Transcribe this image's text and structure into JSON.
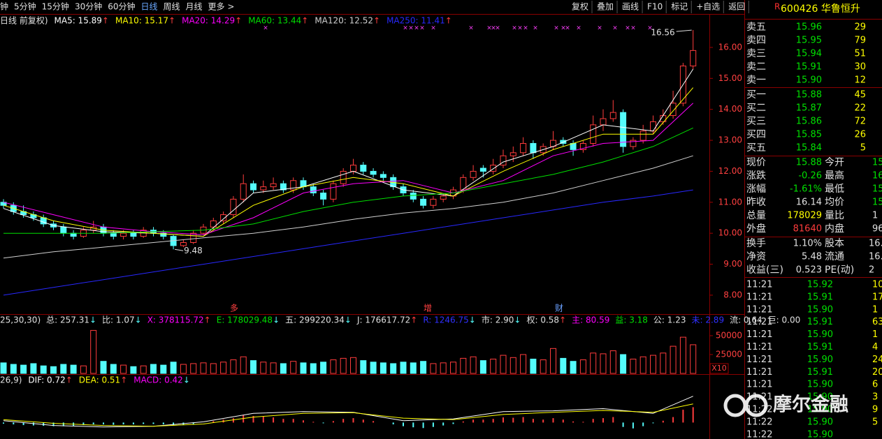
{
  "toolbar": {
    "periods": [
      "分钟",
      "5分钟",
      "15分钟",
      "30分钟",
      "60分钟",
      "日线",
      "周线",
      "月线",
      "更多 >"
    ],
    "active": 5,
    "buttons": [
      "复权",
      "叠加",
      "画线",
      "F10",
      "标记",
      "+自选",
      "返回"
    ]
  },
  "stock": {
    "flag": "R",
    "code_name": "600426 华鲁恒升"
  },
  "chart": {
    "type": "candlestick",
    "ma_header": [
      {
        "text": "日线 前复权)",
        "color": "#e0e0e0"
      },
      {
        "text": "MA5: 15.89",
        "color": "#ffffff",
        "arrow": "↑"
      },
      {
        "text": "MA10: 15.17",
        "color": "#ffff00",
        "arrow": "↑"
      },
      {
        "text": "MA20: 14.29",
        "color": "#ff00ff",
        "arrow": "↑"
      },
      {
        "text": "MA60: 13.44",
        "color": "#00e000",
        "arrow": "↑"
      },
      {
        "text": "MA120: 12.52",
        "color": "#d0d0d0",
        "arrow": "↑"
      },
      {
        "text": "MA250: 11.41",
        "color": "#2828ff",
        "arrow": "↑"
      }
    ],
    "ylim": [
      7.39,
      17.08
    ],
    "yticks": [
      {
        "value": 8,
        "label": "8.00"
      },
      {
        "value": 9,
        "label": "9.00"
      },
      {
        "value": 10,
        "label": "10.00"
      },
      {
        "value": 11,
        "label": "11.00"
      },
      {
        "value": 12,
        "label": "12.00"
      },
      {
        "value": 13,
        "label": "13.00"
      },
      {
        "value": 14,
        "label": "14.00"
      },
      {
        "value": 15,
        "label": "15.00"
      },
      {
        "value": 16,
        "label": "16.00"
      }
    ],
    "up_color": "#ff3c3c",
    "down_color": "#54fcfc",
    "candles": [
      [
        11.0,
        11.1,
        10.8,
        10.9
      ],
      [
        10.9,
        11.0,
        10.6,
        10.7
      ],
      [
        10.7,
        10.9,
        10.5,
        10.6
      ],
      [
        10.6,
        10.7,
        10.4,
        10.5
      ],
      [
        10.5,
        10.6,
        10.2,
        10.3
      ],
      [
        10.3,
        10.4,
        10.1,
        10.2
      ],
      [
        10.2,
        10.3,
        9.9,
        10.0
      ],
      [
        10.0,
        10.1,
        9.8,
        9.9
      ],
      [
        9.9,
        10.2,
        9.85,
        10.1
      ],
      [
        10.1,
        10.4,
        10.0,
        10.2
      ],
      [
        10.2,
        10.3,
        9.9,
        10.0
      ],
      [
        10.0,
        10.1,
        9.8,
        9.9
      ],
      [
        9.9,
        10.1,
        9.8,
        10.0
      ],
      [
        10.0,
        10.1,
        9.8,
        9.9
      ],
      [
        9.9,
        10.2,
        9.85,
        10.1
      ],
      [
        10.1,
        10.2,
        9.9,
        10.0
      ],
      [
        10.0,
        10.1,
        9.8,
        9.9
      ],
      [
        9.9,
        9.95,
        9.48,
        9.6
      ],
      [
        9.6,
        9.8,
        9.55,
        9.7
      ],
      [
        9.7,
        10.1,
        9.65,
        10.0
      ],
      [
        10.0,
        10.3,
        9.95,
        10.2
      ],
      [
        10.2,
        10.5,
        10.1,
        10.4
      ],
      [
        10.4,
        10.7,
        10.3,
        10.6
      ],
      [
        10.6,
        11.2,
        10.5,
        11.1
      ],
      [
        11.1,
        11.9,
        11.0,
        11.6
      ],
      [
        11.6,
        11.7,
        11.3,
        11.4
      ],
      [
        11.4,
        11.7,
        11.3,
        11.5
      ],
      [
        11.5,
        11.8,
        11.4,
        11.6
      ],
      [
        11.6,
        11.7,
        11.3,
        11.4
      ],
      [
        11.4,
        11.8,
        11.3,
        11.7
      ],
      [
        11.7,
        11.8,
        11.4,
        11.5
      ],
      [
        11.5,
        11.6,
        11.2,
        11.3
      ],
      [
        11.3,
        11.4,
        10.9,
        11.1
      ],
      [
        11.1,
        11.7,
        11.0,
        11.6
      ],
      [
        11.6,
        12.1,
        11.5,
        12.0
      ],
      [
        12.0,
        12.4,
        11.9,
        12.2
      ],
      [
        12.2,
        12.3,
        11.9,
        12.0
      ],
      [
        12.0,
        12.1,
        11.8,
        11.9
      ],
      [
        11.9,
        12.0,
        11.7,
        11.8
      ],
      [
        11.8,
        11.9,
        11.4,
        11.5
      ],
      [
        11.5,
        11.6,
        11.2,
        11.3
      ],
      [
        11.3,
        11.4,
        11.0,
        11.1
      ],
      [
        11.1,
        11.2,
        10.8,
        10.9
      ],
      [
        10.9,
        11.2,
        10.8,
        11.1
      ],
      [
        11.1,
        11.3,
        11.0,
        11.2
      ],
      [
        11.2,
        11.5,
        11.1,
        11.4
      ],
      [
        11.4,
        11.9,
        11.3,
        11.8
      ],
      [
        11.8,
        12.2,
        11.7,
        12.0
      ],
      [
        12.1,
        12.2,
        11.8,
        12.0
      ],
      [
        12.0,
        12.4,
        11.9,
        12.2
      ],
      [
        12.2,
        12.7,
        12.1,
        12.5
      ],
      [
        12.5,
        12.8,
        12.3,
        12.6
      ],
      [
        12.6,
        13.1,
        12.5,
        12.9
      ],
      [
        12.9,
        13.0,
        12.4,
        12.6
      ],
      [
        12.6,
        12.9,
        12.5,
        12.8
      ],
      [
        12.8,
        13.3,
        12.7,
        13.0
      ],
      [
        13.0,
        13.1,
        12.8,
        12.9
      ],
      [
        12.9,
        13.0,
        12.5,
        12.7
      ],
      [
        12.7,
        13.0,
        12.6,
        12.9
      ],
      [
        12.9,
        13.8,
        12.8,
        13.5
      ],
      [
        13.5,
        14.0,
        13.3,
        13.7
      ],
      [
        13.7,
        14.3,
        13.6,
        13.9
      ],
      [
        13.9,
        14.0,
        12.6,
        12.8
      ],
      [
        12.8,
        13.1,
        12.7,
        13.0
      ],
      [
        13.0,
        13.5,
        12.9,
        13.3
      ],
      [
        13.3,
        13.8,
        13.2,
        13.6
      ],
      [
        13.6,
        14.0,
        13.5,
        13.8
      ],
      [
        13.8,
        14.6,
        13.7,
        14.2
      ],
      [
        14.2,
        15.5,
        14.1,
        15.4
      ],
      [
        15.4,
        16.56,
        15.3,
        15.9
      ]
    ],
    "ma_index": [
      0,
      5,
      10,
      15,
      20,
      25,
      30,
      35,
      40,
      45,
      50,
      55,
      60,
      65,
      69
    ],
    "ma_lines": [
      {
        "color": "#ffffff",
        "values": [
          10.8,
          10.25,
          10.05,
          10.0,
          9.9,
          11.3,
          11.5,
          12.0,
          11.4,
          11.2,
          12.3,
          12.8,
          13.5,
          13.3,
          15.3
        ]
      },
      {
        "color": "#ffff00",
        "values": [
          10.9,
          10.4,
          10.1,
          10.0,
          9.9,
          10.9,
          11.5,
          11.8,
          11.6,
          11.2,
          12.0,
          12.7,
          13.2,
          13.2,
          14.7
        ]
      },
      {
        "color": "#ff00ff",
        "values": [
          11.0,
          10.6,
          10.2,
          10.05,
          9.95,
          10.5,
          11.3,
          11.6,
          11.7,
          11.3,
          11.7,
          12.5,
          12.9,
          13.0,
          14.2
        ]
      },
      {
        "color": "#00e000",
        "values": [
          10.0,
          10.0,
          10.0,
          10.05,
          10.1,
          10.3,
          10.7,
          11.0,
          11.2,
          11.3,
          11.6,
          11.9,
          12.3,
          12.8,
          13.4
        ]
      },
      {
        "color": "#d0d0d0",
        "values": [
          9.2,
          9.4,
          9.55,
          9.7,
          9.85,
          10.0,
          10.2,
          10.45,
          10.65,
          10.8,
          11.0,
          11.3,
          11.7,
          12.1,
          12.5
        ]
      },
      {
        "color": "#2828ff",
        "values": [
          8.0,
          8.25,
          8.5,
          8.75,
          9.0,
          9.25,
          9.5,
          9.75,
          10.0,
          10.25,
          10.5,
          10.75,
          11.0,
          11.2,
          11.4
        ]
      }
    ],
    "high": 16.56,
    "low": 9.48,
    "events": [
      "多",
      "增",
      "财"
    ],
    "volume": {
      "header": [
        {
          "text": "25,30,30)",
          "color": "#e0e0e0"
        },
        {
          "text": "总: 257.31",
          "color": "#e0e0e0",
          "arrow": "↓"
        },
        {
          "text": "比: 1.07",
          "color": "#e0e0e0",
          "arrow": "↓"
        },
        {
          "text": "X: 378115.72",
          "color": "#ff00ff",
          "arrow": "↑"
        },
        {
          "text": "E: 178029.48",
          "color": "#00e000",
          "arrow": "↓"
        },
        {
          "text": "五: 299220.34",
          "color": "#e0e0e0",
          "arrow": "↓"
        },
        {
          "text": "J: 176617.72",
          "color": "#e0e0e0",
          "arrow": "↑"
        },
        {
          "text": "R: 1246.75",
          "color": "#3030ff",
          "arrow": "↓"
        },
        {
          "text": "市: 2.90",
          "color": "#e0e0e0",
          "arrow": "↓"
        },
        {
          "text": "权: 0.58",
          "color": "#e0e0e0",
          "arrow": "↑"
        },
        {
          "text": "主: 80.59",
          "color": "#ff00ff"
        },
        {
          "text": "益: 3.18",
          "color": "#00e000"
        },
        {
          "text": "公: 1.23",
          "color": "#e0e0e0"
        },
        {
          "text": "未: 2.89",
          "color": "#3030ff"
        },
        {
          "text": "流: 0.64",
          "color": "#e0e0e0"
        },
        {
          "text": "巨: 0.00",
          "color": "#e0e0e0"
        }
      ],
      "ylim": [
        0,
        62000
      ],
      "yticks": [
        25000,
        50000
      ],
      "unit": "X10",
      "values": [
        14000,
        12000,
        11000,
        13000,
        10000,
        9000,
        12000,
        11000,
        10000,
        57000,
        16000,
        12000,
        11000,
        9000,
        10000,
        12000,
        11000,
        15000,
        12000,
        13000,
        14000,
        13000,
        15000,
        18000,
        22000,
        17000,
        15000,
        14000,
        13000,
        16000,
        14000,
        13000,
        15000,
        18000,
        20000,
        21000,
        17000,
        15000,
        14000,
        13000,
        15000,
        14000,
        16000,
        13000,
        14000,
        15000,
        20000,
        22000,
        17000,
        19000,
        24000,
        21000,
        25000,
        19000,
        18000,
        33000,
        20000,
        16000,
        18000,
        27000,
        26000,
        30000,
        25000,
        19000,
        22000,
        24000,
        27000,
        36000,
        48000,
        38000
      ]
    },
    "macd": {
      "header": [
        {
          "text": "26,9)",
          "color": "#e0e0e0"
        },
        {
          "text": "DIF: 0.72",
          "color": "#ffffff",
          "arrow": "↑"
        },
        {
          "text": "DEA: 0.51",
          "color": "#ffff00",
          "arrow": "↑"
        },
        {
          "text": "MACD: 0.42",
          "color": "#ff00ff",
          "arrow": "↓"
        }
      ],
      "ylim": [
        -0.45,
        1.0
      ],
      "dif_color": "#ffffff",
      "dea_color": "#ffff00",
      "dif": [
        0.05,
        -0.08,
        -0.12,
        -0.1,
        0.02,
        0.25,
        0.3,
        0.28,
        0.05,
        0.1,
        0.3,
        0.32,
        0.38,
        0.25,
        0.72
      ],
      "dea": [
        0.08,
        -0.02,
        -0.08,
        -0.1,
        -0.04,
        0.15,
        0.25,
        0.27,
        0.12,
        0.08,
        0.22,
        0.28,
        0.33,
        0.28,
        0.51
      ],
      "values": [
        -0.03,
        -0.05,
        -0.07,
        -0.08,
        -0.09,
        -0.1,
        -0.1,
        -0.09,
        -0.07,
        -0.05,
        -0.05,
        -0.06,
        -0.05,
        -0.05,
        -0.04,
        -0.04,
        -0.05,
        -0.08,
        -0.07,
        -0.04,
        0.0,
        0.04,
        0.08,
        0.12,
        0.2,
        0.18,
        0.16,
        0.14,
        0.1,
        0.1,
        0.06,
        0.02,
        -0.02,
        0.04,
        0.1,
        0.12,
        0.08,
        0.04,
        0.0,
        -0.05,
        -0.1,
        -0.13,
        -0.15,
        -0.12,
        -0.08,
        -0.04,
        0.03,
        0.08,
        0.08,
        0.1,
        0.14,
        0.13,
        0.15,
        0.1,
        0.08,
        0.12,
        0.08,
        0.03,
        0.02,
        0.1,
        0.12,
        0.15,
        -0.12,
        -0.16,
        -0.1,
        -0.02,
        0.05,
        0.15,
        0.35,
        0.42
      ]
    }
  },
  "order_book": {
    "asks": [
      [
        "卖五",
        "15.96",
        "29"
      ],
      [
        "卖四",
        "15.95",
        "79"
      ],
      [
        "卖三",
        "15.94",
        "51"
      ],
      [
        "卖二",
        "15.91",
        "30"
      ],
      [
        "卖一",
        "15.90",
        "12"
      ]
    ],
    "bids": [
      [
        "买一",
        "15.88",
        "45"
      ],
      [
        "买二",
        "15.87",
        "22"
      ],
      [
        "买三",
        "15.86",
        "72"
      ],
      [
        "买四",
        "15.85",
        "26"
      ],
      [
        "买五",
        "15.84",
        "5"
      ]
    ]
  },
  "quote": {
    "rows": [
      [
        "现价",
        "15.88",
        "今开",
        "15"
      ],
      [
        "涨跌",
        "-0.26",
        "最高",
        "16"
      ],
      [
        "涨幅",
        "-1.61%",
        "最低",
        "15"
      ],
      [
        "昨收",
        "16.14",
        "均价",
        "15"
      ],
      [
        "总量",
        "178029",
        "量比",
        "1"
      ],
      [
        "外盘",
        "81640",
        "内盘",
        "96"
      ]
    ],
    "rows2": [
      [
        "换手",
        "1.10%",
        "股本",
        "16."
      ],
      [
        "净资",
        "5.48",
        "流通",
        "16."
      ],
      [
        "收益(三)",
        "0.523",
        "PE(动)",
        "2"
      ]
    ]
  },
  "ticks": [
    [
      "11:21",
      "15.92",
      "10"
    ],
    [
      "11:21",
      "15.91",
      "17"
    ],
    [
      "11:21",
      "15.90",
      "1"
    ],
    [
      "11:21",
      "15.91",
      "63"
    ],
    [
      "11:21",
      "15.90",
      "1"
    ],
    [
      "11:21",
      "15.91",
      "4"
    ],
    [
      "11:21",
      "15.90",
      "24"
    ],
    [
      "11:21",
      "15.91",
      "20"
    ],
    [
      "11:21",
      "15.90",
      "6"
    ],
    [
      "11:21",
      "15.90",
      "3"
    ],
    [
      "11:22",
      "15.90",
      "9"
    ],
    [
      "11:22",
      "15.90",
      "5"
    ],
    [
      "11:22",
      "15.90"
    ]
  ],
  "watermark": "摩尔金融"
}
